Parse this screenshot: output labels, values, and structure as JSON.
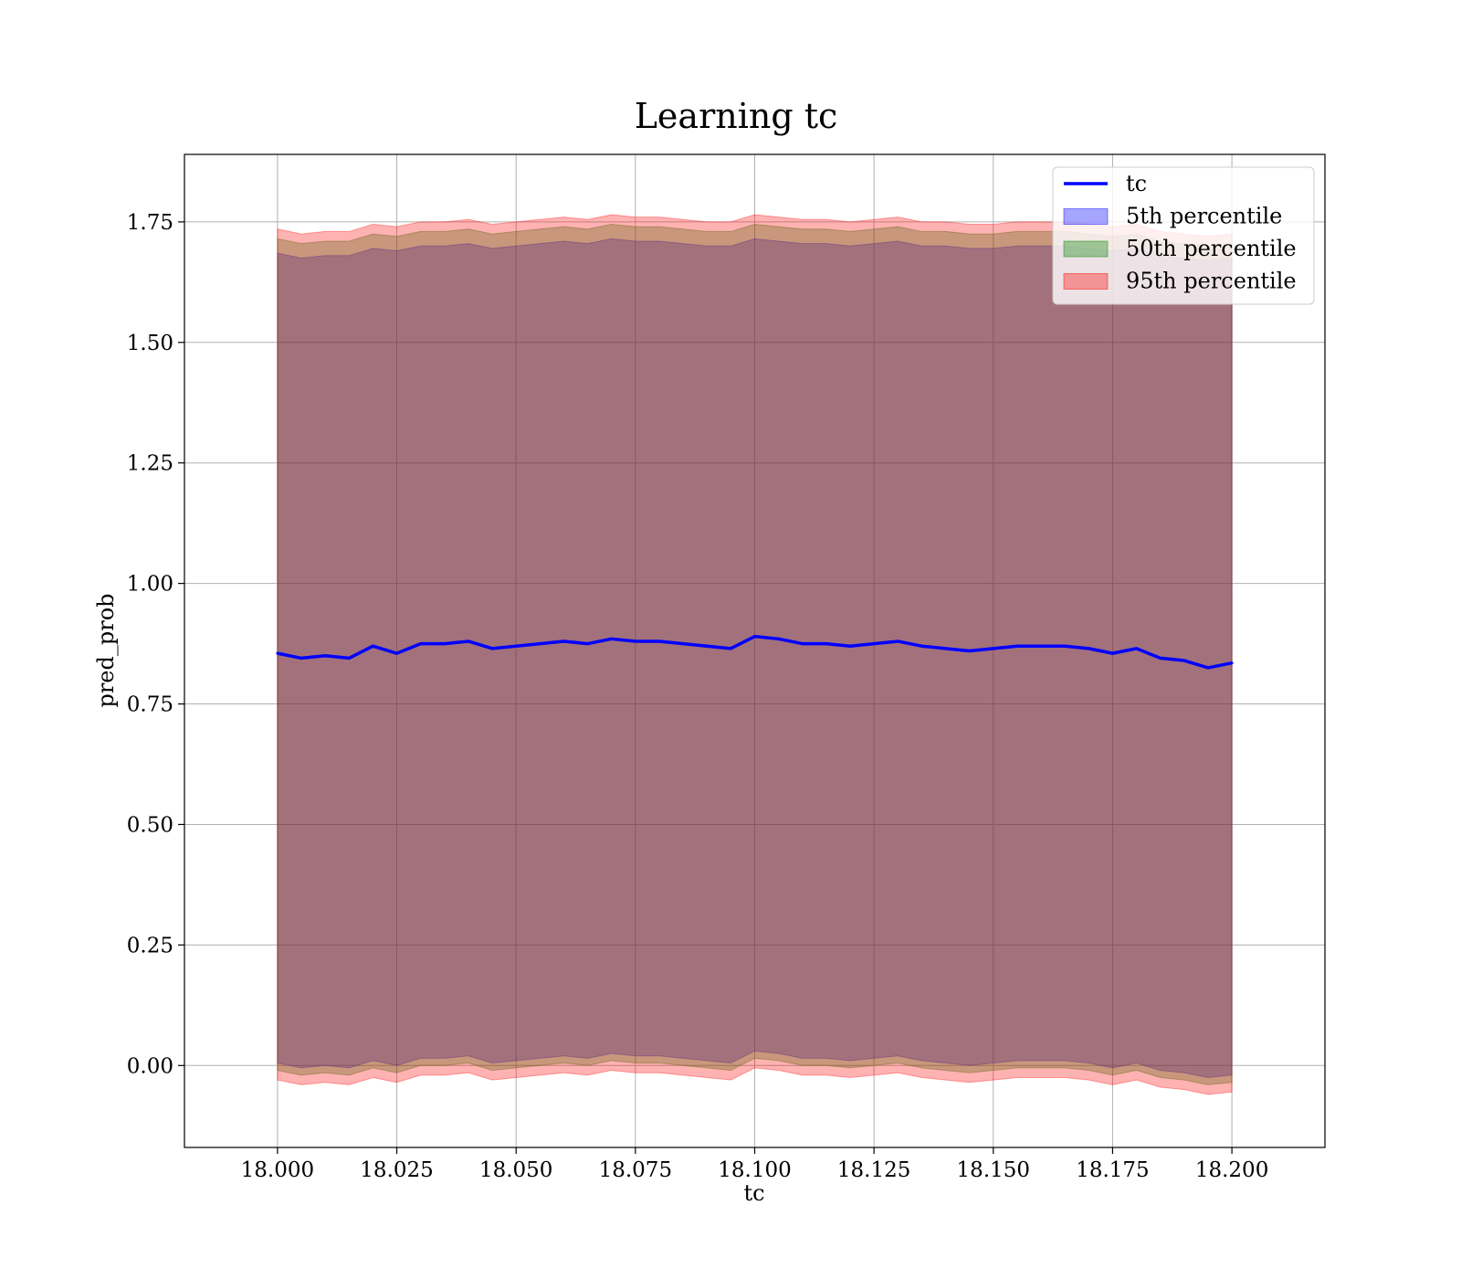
{
  "chart_data": {
    "type": "line",
    "title": "Learning tc",
    "xlabel": "tc",
    "ylabel": "pred_prob",
    "xlim": [
      17.9805,
      18.2195
    ],
    "ylim": [
      -0.17,
      1.89
    ],
    "x_ticks": [
      18.0,
      18.025,
      18.05,
      18.075,
      18.1,
      18.125,
      18.15,
      18.175,
      18.2
    ],
    "x_tick_labels": [
      "18.000",
      "18.025",
      "18.050",
      "18.075",
      "18.100",
      "18.125",
      "18.150",
      "18.175",
      "18.200"
    ],
    "y_ticks": [
      0.0,
      0.25,
      0.5,
      0.75,
      1.0,
      1.25,
      1.5,
      1.75
    ],
    "y_tick_labels": [
      "0.00",
      "0.25",
      "0.50",
      "0.75",
      "1.00",
      "1.25",
      "1.50",
      "1.75"
    ],
    "grid": true,
    "legend_position": "top-right",
    "x": [
      18.0,
      18.005,
      18.01,
      18.015,
      18.02,
      18.025,
      18.03,
      18.035,
      18.04,
      18.045,
      18.05,
      18.055,
      18.06,
      18.065,
      18.07,
      18.075,
      18.08,
      18.085,
      18.09,
      18.095,
      18.1,
      18.105,
      18.11,
      18.115,
      18.12,
      18.125,
      18.13,
      18.135,
      18.14,
      18.145,
      18.15,
      18.155,
      18.16,
      18.165,
      18.17,
      18.175,
      18.18,
      18.185,
      18.19,
      18.195,
      18.2
    ],
    "series": [
      {
        "name": "tc",
        "kind": "line",
        "color": "#0000ff",
        "values": [
          0.855,
          0.845,
          0.85,
          0.845,
          0.87,
          0.855,
          0.875,
          0.875,
          0.88,
          0.865,
          0.87,
          0.875,
          0.88,
          0.875,
          0.885,
          0.88,
          0.88,
          0.875,
          0.87,
          0.865,
          0.89,
          0.885,
          0.875,
          0.875,
          0.87,
          0.875,
          0.88,
          0.87,
          0.865,
          0.86,
          0.865,
          0.87,
          0.87,
          0.87,
          0.865,
          0.855,
          0.865,
          0.845,
          0.84,
          0.825,
          0.835
        ]
      },
      {
        "name": "5th percentile",
        "kind": "band",
        "color": "#0000ff",
        "lower": [
          0.005,
          -0.005,
          0.0,
          -0.005,
          0.01,
          0.0,
          0.015,
          0.015,
          0.02,
          0.005,
          0.01,
          0.015,
          0.02,
          0.015,
          0.025,
          0.02,
          0.02,
          0.015,
          0.01,
          0.005,
          0.03,
          0.025,
          0.015,
          0.015,
          0.01,
          0.015,
          0.02,
          0.01,
          0.005,
          0.0,
          0.005,
          0.01,
          0.01,
          0.01,
          0.005,
          -0.005,
          0.005,
          -0.01,
          -0.015,
          -0.025,
          -0.02
        ],
        "upper": [
          1.685,
          1.675,
          1.68,
          1.68,
          1.695,
          1.69,
          1.7,
          1.7,
          1.705,
          1.695,
          1.7,
          1.705,
          1.71,
          1.705,
          1.715,
          1.71,
          1.71,
          1.705,
          1.7,
          1.7,
          1.715,
          1.71,
          1.705,
          1.705,
          1.7,
          1.705,
          1.71,
          1.7,
          1.7,
          1.695,
          1.695,
          1.7,
          1.7,
          1.7,
          1.695,
          1.69,
          1.695,
          1.68,
          1.675,
          1.67,
          1.675
        ]
      },
      {
        "name": "50th percentile",
        "kind": "band",
        "color": "#008000",
        "lower": [
          -0.01,
          -0.02,
          -0.015,
          -0.02,
          -0.005,
          -0.015,
          0.0,
          0.0,
          0.005,
          -0.01,
          -0.005,
          0.0,
          0.005,
          0.0,
          0.01,
          0.005,
          0.005,
          0.0,
          -0.005,
          -0.01,
          0.015,
          0.01,
          0.0,
          0.0,
          -0.005,
          0.0,
          0.005,
          -0.005,
          -0.01,
          -0.015,
          -0.01,
          -0.005,
          -0.005,
          -0.005,
          -0.01,
          -0.02,
          -0.01,
          -0.025,
          -0.03,
          -0.04,
          -0.035
        ],
        "upper": [
          1.715,
          1.705,
          1.71,
          1.71,
          1.725,
          1.72,
          1.73,
          1.73,
          1.735,
          1.725,
          1.73,
          1.735,
          1.74,
          1.735,
          1.745,
          1.74,
          1.74,
          1.735,
          1.73,
          1.73,
          1.745,
          1.74,
          1.735,
          1.735,
          1.73,
          1.735,
          1.74,
          1.73,
          1.73,
          1.725,
          1.725,
          1.73,
          1.73,
          1.73,
          1.725,
          1.72,
          1.725,
          1.71,
          1.705,
          1.7,
          1.705
        ]
      },
      {
        "name": "95th percentile",
        "kind": "band",
        "color": "#ff0000",
        "lower": [
          -0.03,
          -0.04,
          -0.035,
          -0.04,
          -0.025,
          -0.035,
          -0.02,
          -0.02,
          -0.015,
          -0.03,
          -0.025,
          -0.02,
          -0.015,
          -0.02,
          -0.01,
          -0.015,
          -0.015,
          -0.02,
          -0.025,
          -0.03,
          -0.005,
          -0.01,
          -0.02,
          -0.02,
          -0.025,
          -0.02,
          -0.015,
          -0.025,
          -0.03,
          -0.035,
          -0.03,
          -0.025,
          -0.025,
          -0.025,
          -0.03,
          -0.04,
          -0.03,
          -0.045,
          -0.05,
          -0.06,
          -0.055
        ],
        "upper": [
          1.735,
          1.725,
          1.73,
          1.73,
          1.745,
          1.74,
          1.75,
          1.75,
          1.755,
          1.745,
          1.75,
          1.755,
          1.76,
          1.755,
          1.765,
          1.76,
          1.76,
          1.755,
          1.75,
          1.75,
          1.765,
          1.76,
          1.755,
          1.755,
          1.75,
          1.755,
          1.76,
          1.75,
          1.75,
          1.745,
          1.745,
          1.75,
          1.75,
          1.75,
          1.745,
          1.74,
          1.745,
          1.73,
          1.725,
          1.72,
          1.725
        ]
      }
    ]
  }
}
